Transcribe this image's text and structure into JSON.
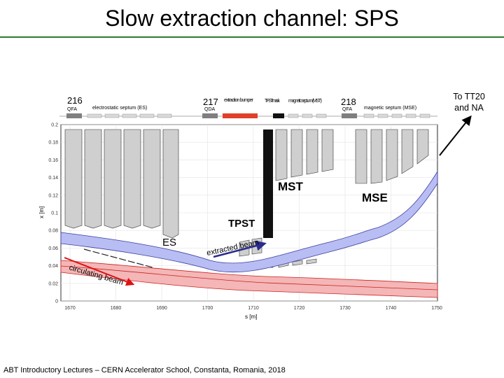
{
  "slide": {
    "title": "Slow extraction channel: SPS",
    "footer": "ABT Introductory Lectures – CERN Accelerator School, Constanta, Romania, 2018",
    "destination_note": "To TT20 and NA",
    "title_bar_color": "#2f7a2f"
  },
  "beamline": {
    "sections": [
      {
        "number": "216",
        "sub": "QFA"
      },
      {
        "number": "217",
        "sub": "QDA"
      },
      {
        "number": "218",
        "sub": "QFA"
      }
    ],
    "element_labels": {
      "es": "electrostatic septum (ES)",
      "bumper": "extraction bumper",
      "tpst_mask": "TPST mask",
      "mst": "magnetic septum (MST)",
      "mse": "magnetic septum (MSE)"
    },
    "colors": {
      "qf": "#7f7f7f",
      "qd": "#7f7f7f",
      "bumper": "#e0402a",
      "mask": "#111111"
    }
  },
  "plot": {
    "xlabel": "s [m]",
    "ylabel": "x [m]",
    "x_ticks": [
      "1670",
      "1680",
      "1690",
      "1700",
      "1710",
      "1720",
      "1730",
      "1740",
      "1750"
    ],
    "y_ticks": [
      "0",
      "0.02",
      "0.04",
      "0.06",
      "0.08",
      "0.1",
      "0.12",
      "0.14",
      "0.16",
      "0.18",
      "0.2"
    ],
    "labels": {
      "mst": "MST",
      "mse": "MSE",
      "tpst": "TPST",
      "es": "ES",
      "extracted": "extracted beam",
      "circulating": "circulating beam"
    },
    "colors": {
      "extracted_band": "#b8bdf3",
      "circulating_band": "#f4b6b6",
      "septa": "#cfcfcf"
    }
  }
}
